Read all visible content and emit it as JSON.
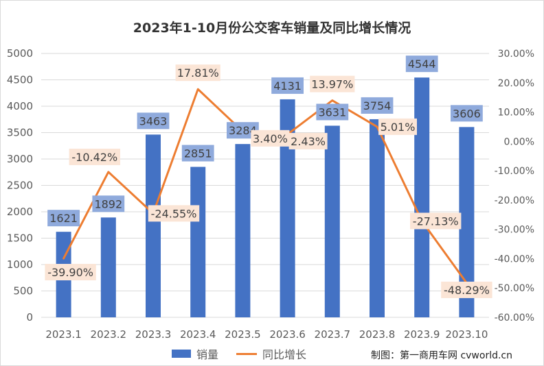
{
  "chart_data": {
    "type": "bar",
    "title": "2023年1-10月份公交客车销量及同比增长情况",
    "categories": [
      "2023.1",
      "2023.2",
      "2023.3",
      "2023.4",
      "2023.5",
      "2023.6",
      "2023.7",
      "2023.8",
      "2023.9",
      "2023.10"
    ],
    "series": [
      {
        "name": "销量",
        "type": "bar",
        "axis": "left",
        "values": [
          1621,
          1892,
          3463,
          2851,
          3284,
          4131,
          3631,
          3754,
          4544,
          3606
        ],
        "labels": [
          "1621",
          "1892",
          "3463",
          "2851",
          "3284",
          "4131",
          "3631",
          "3754",
          "4544",
          "3606"
        ]
      },
      {
        "name": "同比增长",
        "type": "line",
        "axis": "right",
        "values": [
          -39.9,
          -10.42,
          -24.55,
          17.81,
          3.4,
          2.43,
          13.97,
          5.01,
          -27.13,
          -48.29
        ],
        "labels": [
          "-39.90%",
          "-10.42%",
          "-24.55%",
          "17.81%",
          "3.40%",
          "2.43%",
          "13.97%",
          "5.01%",
          "-27.13%",
          "-48.29%"
        ]
      }
    ],
    "y_left": {
      "min": 0,
      "max": 5000,
      "ticks": [
        "0",
        "500",
        "1000",
        "1500",
        "2000",
        "2500",
        "3000",
        "3500",
        "4000",
        "4500",
        "5000"
      ]
    },
    "y_right": {
      "min": -60,
      "max": 30,
      "ticks": [
        "-60.00%",
        "-50.00%",
        "-40.00%",
        "-30.00%",
        "-20.00%",
        "-10.00%",
        "0.00%",
        "10.00%",
        "20.00%",
        "30.00%"
      ]
    },
    "grid": true,
    "legend_position": "bottom",
    "colors": {
      "bar": "#4472c4",
      "line": "#ed7d31",
      "bar_label_bg": "#8faadc",
      "line_label_bg": "#fbe5d6",
      "grid": "#d9d9d9",
      "axis_text": "#595959"
    }
  },
  "legend": {
    "bar_label": "销量",
    "line_label": "同比增长"
  },
  "credit": "制图：第一商用车网 cvworld.cn"
}
